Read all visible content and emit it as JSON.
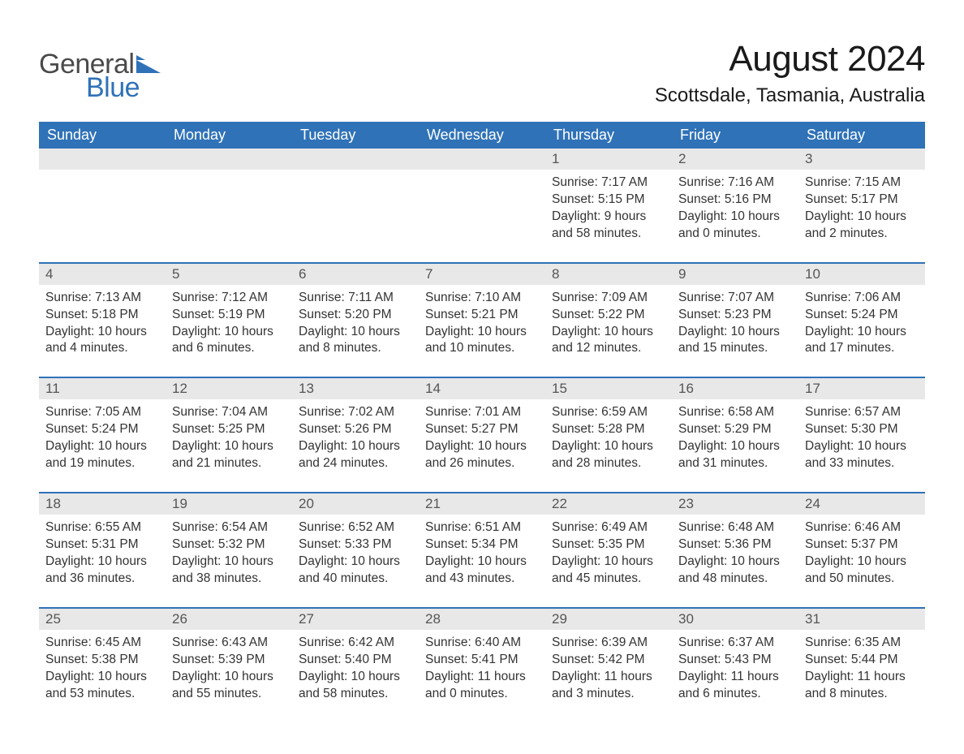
{
  "logo": {
    "text_general": "General",
    "text_blue": "Blue",
    "shape_color": "#2f72b8"
  },
  "title": "August 2024",
  "location": "Scottsdale, Tasmania, Australia",
  "colors": {
    "header_bg": "#2f72b8",
    "header_text": "#ffffff",
    "daynum_bg": "#e8e8e8",
    "daynum_text": "#555555",
    "row_border": "#2f72b8",
    "body_text": "#333333",
    "page_bg": "#ffffff"
  },
  "typography": {
    "title_fontsize": 44,
    "location_fontsize": 24,
    "header_fontsize": 18,
    "daynum_fontsize": 17,
    "info_fontsize": 15.5
  },
  "layout": {
    "columns": 7,
    "rows": 5,
    "start_day_index": 4
  },
  "weekdays": [
    "Sunday",
    "Monday",
    "Tuesday",
    "Wednesday",
    "Thursday",
    "Friday",
    "Saturday"
  ],
  "days": [
    {
      "n": 1,
      "sunrise": "7:17 AM",
      "sunset": "5:15 PM",
      "daylight": "9 hours and 58 minutes."
    },
    {
      "n": 2,
      "sunrise": "7:16 AM",
      "sunset": "5:16 PM",
      "daylight": "10 hours and 0 minutes."
    },
    {
      "n": 3,
      "sunrise": "7:15 AM",
      "sunset": "5:17 PM",
      "daylight": "10 hours and 2 minutes."
    },
    {
      "n": 4,
      "sunrise": "7:13 AM",
      "sunset": "5:18 PM",
      "daylight": "10 hours and 4 minutes."
    },
    {
      "n": 5,
      "sunrise": "7:12 AM",
      "sunset": "5:19 PM",
      "daylight": "10 hours and 6 minutes."
    },
    {
      "n": 6,
      "sunrise": "7:11 AM",
      "sunset": "5:20 PM",
      "daylight": "10 hours and 8 minutes."
    },
    {
      "n": 7,
      "sunrise": "7:10 AM",
      "sunset": "5:21 PM",
      "daylight": "10 hours and 10 minutes."
    },
    {
      "n": 8,
      "sunrise": "7:09 AM",
      "sunset": "5:22 PM",
      "daylight": "10 hours and 12 minutes."
    },
    {
      "n": 9,
      "sunrise": "7:07 AM",
      "sunset": "5:23 PM",
      "daylight": "10 hours and 15 minutes."
    },
    {
      "n": 10,
      "sunrise": "7:06 AM",
      "sunset": "5:24 PM",
      "daylight": "10 hours and 17 minutes."
    },
    {
      "n": 11,
      "sunrise": "7:05 AM",
      "sunset": "5:24 PM",
      "daylight": "10 hours and 19 minutes."
    },
    {
      "n": 12,
      "sunrise": "7:04 AM",
      "sunset": "5:25 PM",
      "daylight": "10 hours and 21 minutes."
    },
    {
      "n": 13,
      "sunrise": "7:02 AM",
      "sunset": "5:26 PM",
      "daylight": "10 hours and 24 minutes."
    },
    {
      "n": 14,
      "sunrise": "7:01 AM",
      "sunset": "5:27 PM",
      "daylight": "10 hours and 26 minutes."
    },
    {
      "n": 15,
      "sunrise": "6:59 AM",
      "sunset": "5:28 PM",
      "daylight": "10 hours and 28 minutes."
    },
    {
      "n": 16,
      "sunrise": "6:58 AM",
      "sunset": "5:29 PM",
      "daylight": "10 hours and 31 minutes."
    },
    {
      "n": 17,
      "sunrise": "6:57 AM",
      "sunset": "5:30 PM",
      "daylight": "10 hours and 33 minutes."
    },
    {
      "n": 18,
      "sunrise": "6:55 AM",
      "sunset": "5:31 PM",
      "daylight": "10 hours and 36 minutes."
    },
    {
      "n": 19,
      "sunrise": "6:54 AM",
      "sunset": "5:32 PM",
      "daylight": "10 hours and 38 minutes."
    },
    {
      "n": 20,
      "sunrise": "6:52 AM",
      "sunset": "5:33 PM",
      "daylight": "10 hours and 40 minutes."
    },
    {
      "n": 21,
      "sunrise": "6:51 AM",
      "sunset": "5:34 PM",
      "daylight": "10 hours and 43 minutes."
    },
    {
      "n": 22,
      "sunrise": "6:49 AM",
      "sunset": "5:35 PM",
      "daylight": "10 hours and 45 minutes."
    },
    {
      "n": 23,
      "sunrise": "6:48 AM",
      "sunset": "5:36 PM",
      "daylight": "10 hours and 48 minutes."
    },
    {
      "n": 24,
      "sunrise": "6:46 AM",
      "sunset": "5:37 PM",
      "daylight": "10 hours and 50 minutes."
    },
    {
      "n": 25,
      "sunrise": "6:45 AM",
      "sunset": "5:38 PM",
      "daylight": "10 hours and 53 minutes."
    },
    {
      "n": 26,
      "sunrise": "6:43 AM",
      "sunset": "5:39 PM",
      "daylight": "10 hours and 55 minutes."
    },
    {
      "n": 27,
      "sunrise": "6:42 AM",
      "sunset": "5:40 PM",
      "daylight": "10 hours and 58 minutes."
    },
    {
      "n": 28,
      "sunrise": "6:40 AM",
      "sunset": "5:41 PM",
      "daylight": "11 hours and 0 minutes."
    },
    {
      "n": 29,
      "sunrise": "6:39 AM",
      "sunset": "5:42 PM",
      "daylight": "11 hours and 3 minutes."
    },
    {
      "n": 30,
      "sunrise": "6:37 AM",
      "sunset": "5:43 PM",
      "daylight": "11 hours and 6 minutes."
    },
    {
      "n": 31,
      "sunrise": "6:35 AM",
      "sunset": "5:44 PM",
      "daylight": "11 hours and 8 minutes."
    }
  ],
  "labels": {
    "sunrise": "Sunrise: ",
    "sunset": "Sunset: ",
    "daylight": "Daylight: "
  }
}
